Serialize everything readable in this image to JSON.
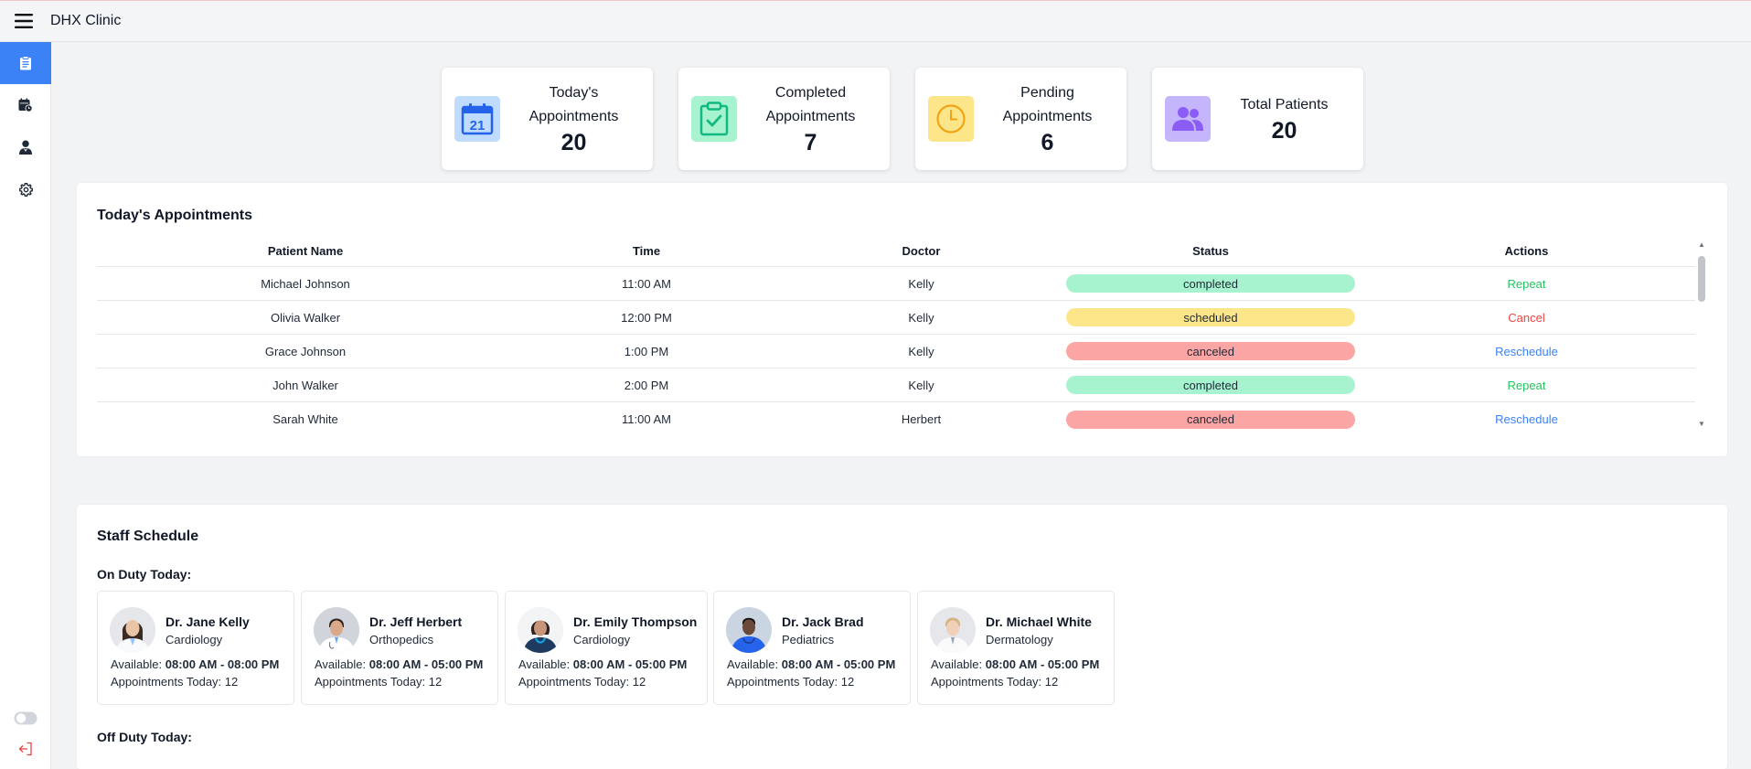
{
  "app": {
    "title": "DHX Clinic"
  },
  "sidebar": {
    "items": [
      {
        "name": "sidebar-item-dashboard",
        "icon": "clipboard-icon",
        "active": true
      },
      {
        "name": "sidebar-item-appointments",
        "icon": "calendar-clock-icon",
        "active": false
      },
      {
        "name": "sidebar-item-doctors",
        "icon": "doctor-icon",
        "active": false
      },
      {
        "name": "sidebar-item-settings",
        "icon": "gear-icon",
        "active": false
      }
    ]
  },
  "stats": [
    {
      "label_lines": [
        "Today's",
        "Appointments"
      ],
      "value": "20",
      "icon": "calendar-icon",
      "icon_bg": "#bfdbfe",
      "icon_color": "#2563eb"
    },
    {
      "label_lines": [
        "Completed",
        "Appointments"
      ],
      "value": "7",
      "icon": "clipboard-check-icon",
      "icon_bg": "#a7f3d0",
      "icon_color": "#10b981"
    },
    {
      "label_lines": [
        "Pending",
        "Appointments"
      ],
      "value": "6",
      "icon": "clock-icon",
      "icon_bg": "#fde68a",
      "icon_color": "#f59e0b"
    },
    {
      "label_lines": [
        "Total Patients"
      ],
      "value": "20",
      "icon": "users-icon",
      "icon_bg": "#c4b5fd",
      "icon_color": "#8b5cf6"
    }
  ],
  "appointments": {
    "title": "Today's Appointments",
    "columns": [
      "Patient Name",
      "Time",
      "Doctor",
      "Status",
      "Actions"
    ],
    "rows": [
      {
        "patient": "Michael Johnson",
        "time": "11:00 AM",
        "doctor": "Kelly",
        "status": "completed",
        "action": "Repeat"
      },
      {
        "patient": "Olivia Walker",
        "time": "12:00 PM",
        "doctor": "Kelly",
        "status": "scheduled",
        "action": "Cancel"
      },
      {
        "patient": "Grace Johnson",
        "time": "1:00 PM",
        "doctor": "Kelly",
        "status": "canceled",
        "action": "Reschedule"
      },
      {
        "patient": "John Walker",
        "time": "2:00 PM",
        "doctor": "Kelly",
        "status": "completed",
        "action": "Repeat"
      },
      {
        "patient": "Sarah White",
        "time": "11:00 AM",
        "doctor": "Herbert",
        "status": "canceled",
        "action": "Reschedule"
      }
    ],
    "action_colors": {
      "Repeat": "#22c55e",
      "Cancel": "#ef4444",
      "Reschedule": "#3b82f6"
    }
  },
  "staff": {
    "title": "Staff Schedule",
    "on_duty_label": "On Duty Today:",
    "off_duty_label": "Off Duty Today:",
    "available_prefix": "Available:",
    "appointments_prefix": "Appointments Today:",
    "on_duty": [
      {
        "name": "Dr. Jane Kelly",
        "dept": "Cardiology",
        "hours": "08:00 AM - 08:00 PM",
        "appointments": "12"
      },
      {
        "name": "Dr. Jeff Herbert",
        "dept": "Orthopedics",
        "hours": "08:00 AM - 05:00 PM",
        "appointments": "12"
      },
      {
        "name": "Dr. Emily Thompson",
        "dept": "Cardiology",
        "hours": "08:00 AM - 05:00 PM",
        "appointments": "12"
      },
      {
        "name": "Dr. Jack Brad",
        "dept": "Pediatrics",
        "hours": "08:00 AM - 05:00 PM",
        "appointments": "12"
      },
      {
        "name": "Dr. Michael White",
        "dept": "Dermatology",
        "hours": "08:00 AM - 05:00 PM",
        "appointments": "12"
      }
    ]
  }
}
